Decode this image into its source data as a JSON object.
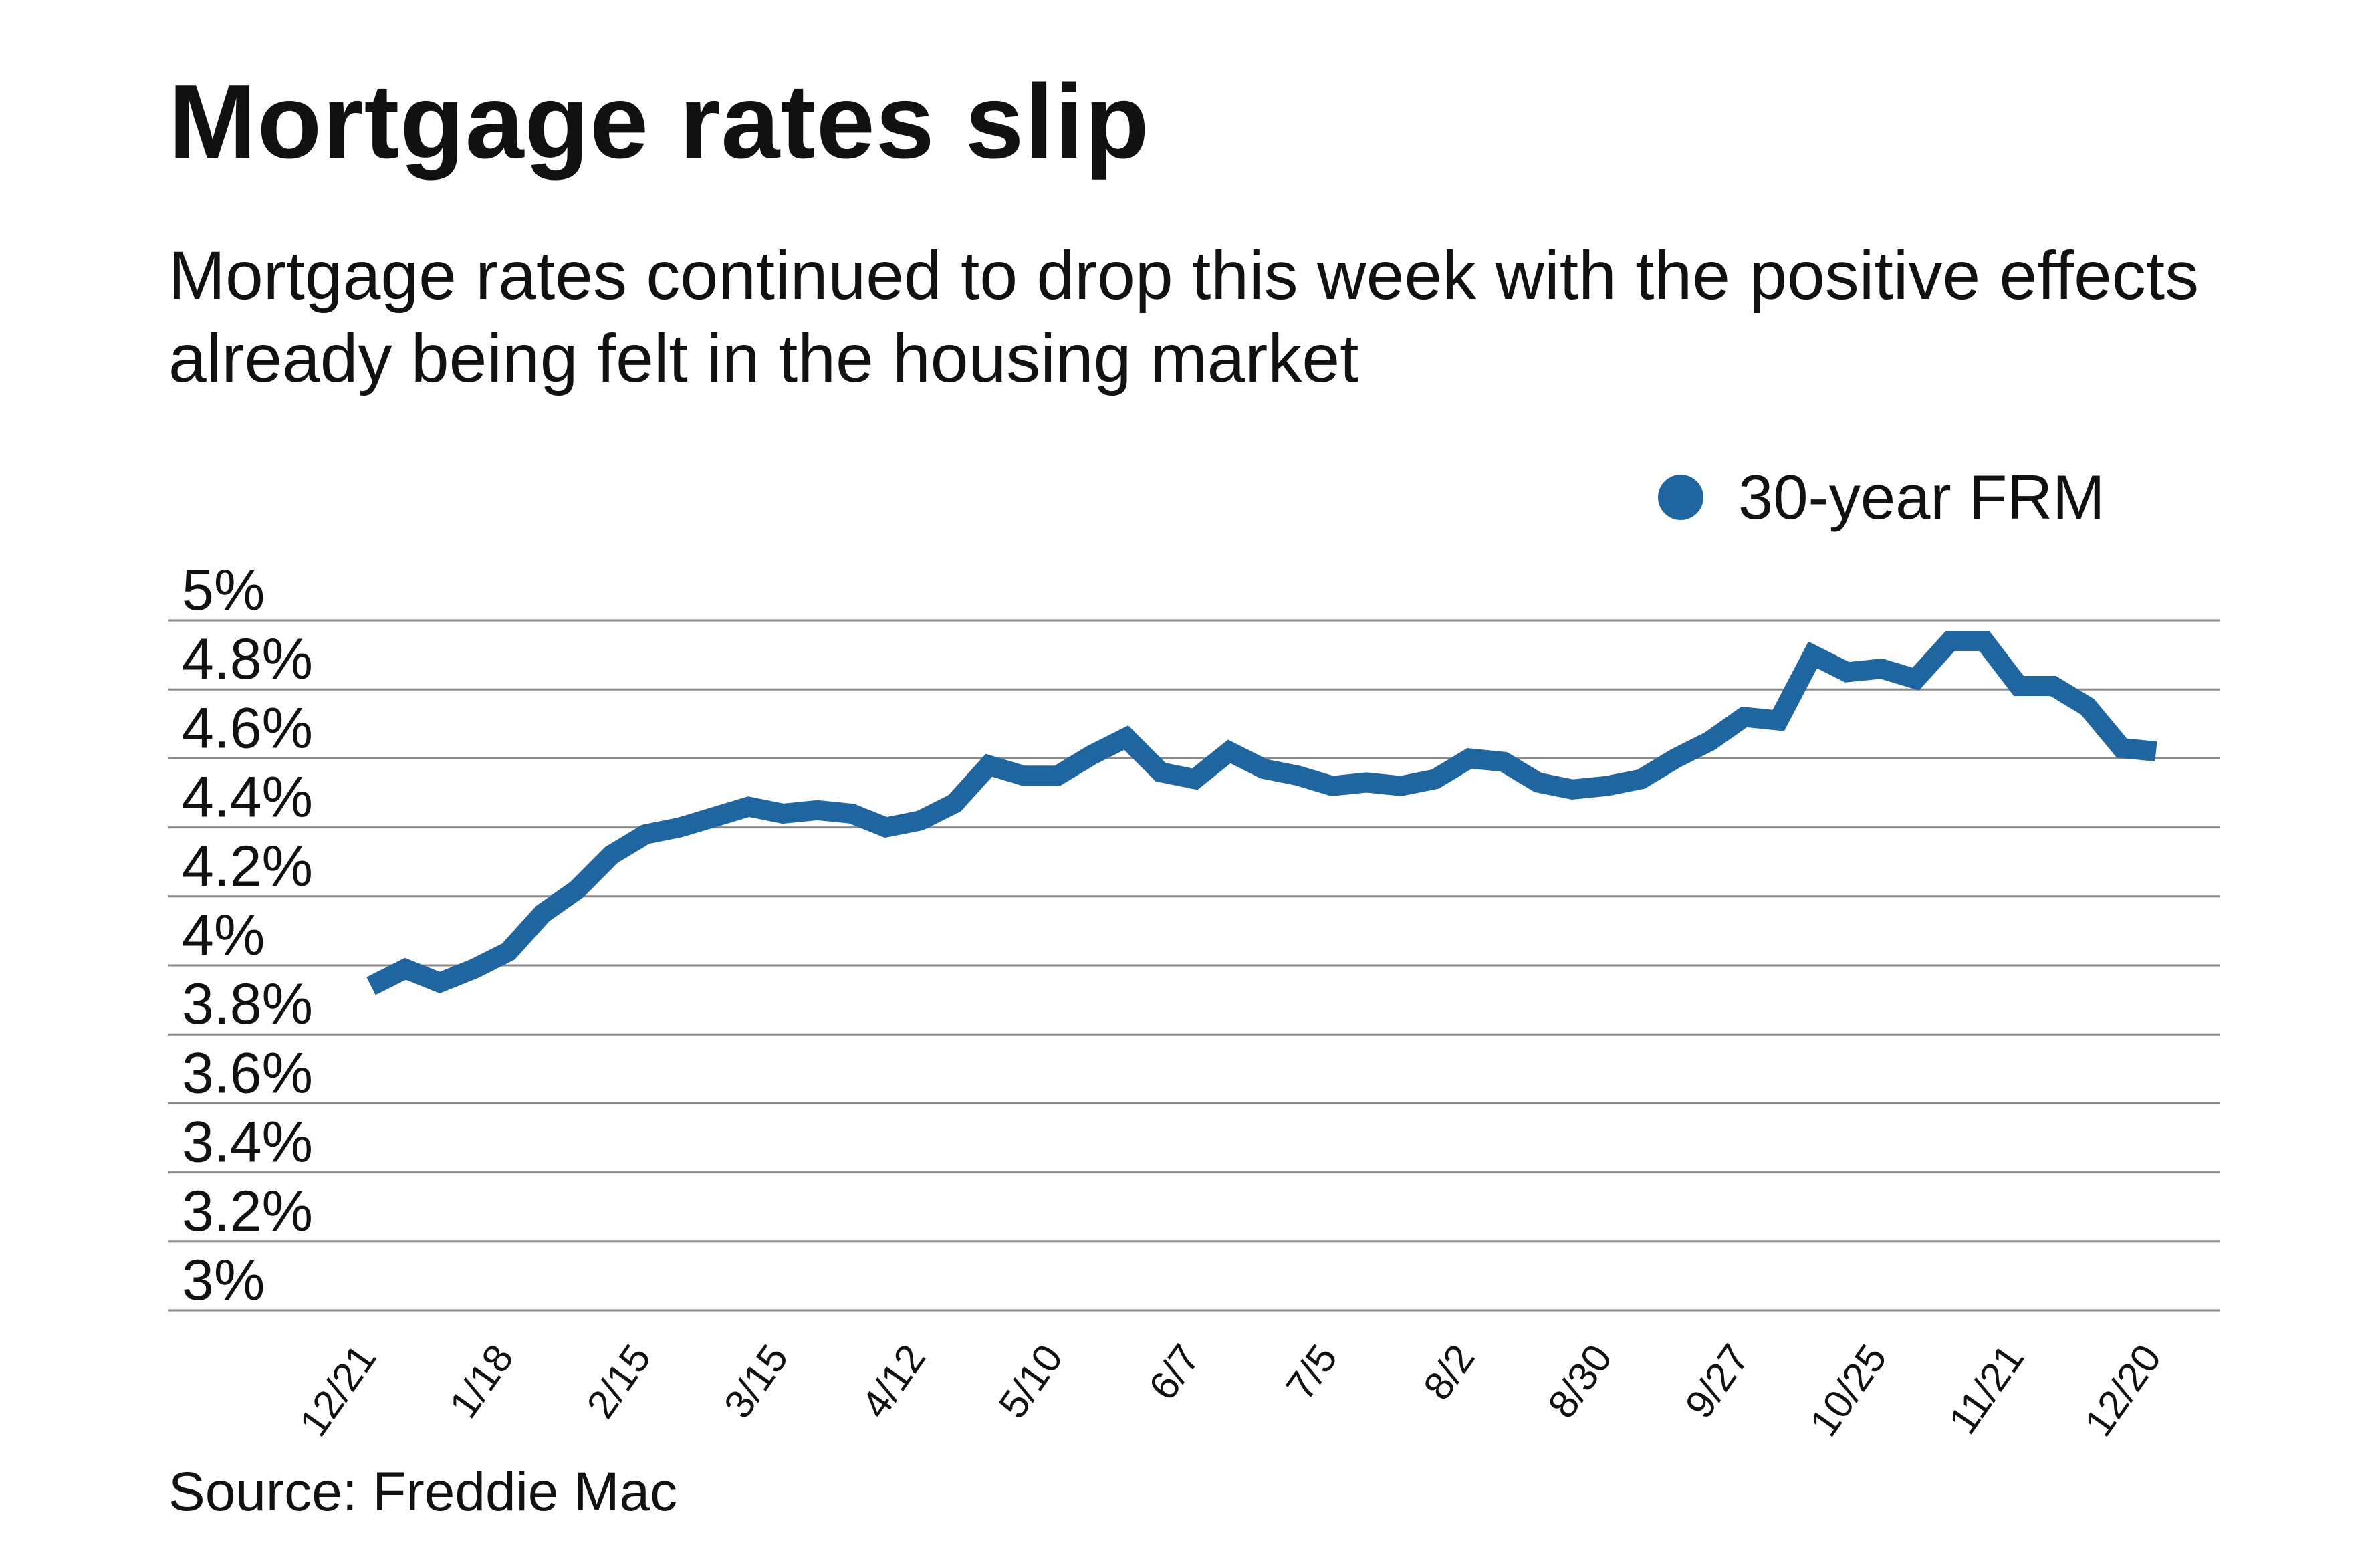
{
  "title": "Mortgage rates slip",
  "subtitle": "Mortgage rates continued to drop this week with the positive effects already being felt in the housing market",
  "source": "Source: Freddie Mac",
  "legend": {
    "label": "30-year FRM",
    "color": "#1f65a0"
  },
  "chart_data": {
    "type": "line",
    "title": "Mortgage rates slip",
    "subtitle": "Mortgage rates continued to drop this week with the positive effects already being felt in the housing market",
    "xlabel": "",
    "ylabel": "",
    "ylim": [
      3.0,
      5.0
    ],
    "yticks": [
      {
        "value": 5.0,
        "label": "5%"
      },
      {
        "value": 4.8,
        "label": "4.8%"
      },
      {
        "value": 4.6,
        "label": "4.6%"
      },
      {
        "value": 4.4,
        "label": "4.4%"
      },
      {
        "value": 4.2,
        "label": "4.2%"
      },
      {
        "value": 4.0,
        "label": "4%"
      },
      {
        "value": 3.8,
        "label": "3.8%"
      },
      {
        "value": 3.6,
        "label": "3.6%"
      },
      {
        "value": 3.4,
        "label": "3.4%"
      },
      {
        "value": 3.2,
        "label": "3.2%"
      },
      {
        "value": 3.0,
        "label": "3%"
      }
    ],
    "xtick_labels": [
      {
        "index": 0,
        "label": "12/21"
      },
      {
        "index": 4,
        "label": "1/18"
      },
      {
        "index": 8,
        "label": "2/15"
      },
      {
        "index": 12,
        "label": "3/15"
      },
      {
        "index": 16,
        "label": "4/12"
      },
      {
        "index": 20,
        "label": "5/10"
      },
      {
        "index": 24,
        "label": "6/7"
      },
      {
        "index": 28,
        "label": "7/5"
      },
      {
        "index": 32,
        "label": "8/2"
      },
      {
        "index": 36,
        "label": "8/30"
      },
      {
        "index": 40,
        "label": "9/27"
      },
      {
        "index": 44,
        "label": "10/25"
      },
      {
        "index": 48,
        "label": "11/21"
      },
      {
        "index": 52,
        "label": "12/20"
      }
    ],
    "grid": true,
    "legend_position": "top-right",
    "series": [
      {
        "name": "30-year FRM",
        "color": "#1f65a0",
        "values": [
          3.94,
          3.99,
          3.95,
          3.99,
          4.04,
          4.15,
          4.22,
          4.32,
          4.38,
          4.4,
          4.43,
          4.46,
          4.44,
          4.45,
          4.44,
          4.4,
          4.42,
          4.47,
          4.58,
          4.55,
          4.55,
          4.61,
          4.66,
          4.56,
          4.54,
          4.62,
          4.57,
          4.55,
          4.52,
          4.53,
          4.52,
          4.54,
          4.6,
          4.59,
          4.53,
          4.51,
          4.52,
          4.54,
          4.6,
          4.65,
          4.72,
          4.71,
          4.9,
          4.85,
          4.86,
          4.83,
          4.94,
          4.94,
          4.81,
          4.81,
          4.75,
          4.63,
          4.62
        ]
      }
    ]
  }
}
